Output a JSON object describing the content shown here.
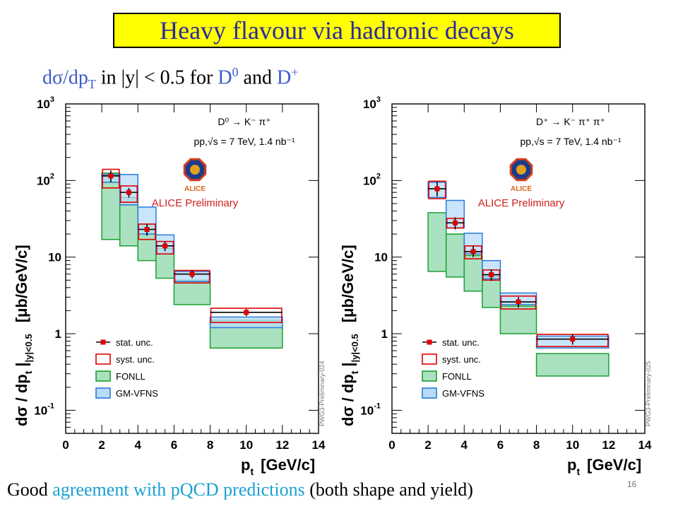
{
  "slide": {
    "title": "Heavy flavour via hadronic decays",
    "subtitle_parts": [
      "dσ/dp",
      "T",
      " in |y| < 0.5 for ",
      "D",
      "0",
      " and ",
      "D",
      "+"
    ],
    "footer_start": "Good ",
    "footer_highlight": "agreement with pQCD predictions",
    "footer_end": " (both shape and yield)",
    "page_number": "16"
  },
  "chart_data": [
    {
      "type": "bar",
      "decay_label": "D⁰ → K⁻ π⁺",
      "energy_label": "pp,√s = 7 TeV, 1.4 nb⁻¹",
      "logo_text": "ALICE",
      "preliminary_label": "ALICE Preliminary",
      "side_label": "PWG3-Preliminary-024",
      "xlabel": "p",
      "xlabel_sub": "t",
      "xlabel_unit": "[GeV/c]",
      "ylabel": "dσ / dp",
      "ylabel_sub": "t",
      "ylabel_cond": "|y|<0.5",
      "ylabel_unit": "[μb/GeV/c]",
      "xlim": [
        0,
        14
      ],
      "ylim": [
        0.05,
        1000
      ],
      "ylog": true,
      "xticks": [
        "0",
        "2",
        "4",
        "6",
        "8",
        "10",
        "12",
        "14"
      ],
      "yticks": [
        {
          "value": 0.1,
          "label": "10",
          "exp": "-1"
        },
        {
          "value": 1,
          "label": "1",
          "exp": ""
        },
        {
          "value": 10,
          "label": "10",
          "exp": ""
        },
        {
          "value": 100,
          "label": "10",
          "exp": "2"
        },
        {
          "value": 1000,
          "label": "10",
          "exp": "3"
        }
      ],
      "bins": [
        {
          "x_low": 2,
          "x_high": 3,
          "x": 2.5,
          "y": 115,
          "stat_low": 95,
          "stat_high": 135,
          "syst_low": 80,
          "syst_high": 140,
          "fonll_low": 17,
          "fonll_high": 125,
          "gmvfns_low": 95,
          "gmvfns_high": 120
        },
        {
          "x_low": 3,
          "x_high": 4,
          "x": 3.5,
          "y": 70,
          "stat_low": 60,
          "stat_high": 80,
          "syst_low": 52,
          "syst_high": 85,
          "fonll_low": 14,
          "fonll_high": 60,
          "gmvfns_low": 48,
          "gmvfns_high": 120
        },
        {
          "x_low": 4,
          "x_high": 5,
          "x": 4.5,
          "y": 23,
          "stat_low": 19,
          "stat_high": 27,
          "syst_low": 17,
          "syst_high": 27,
          "fonll_low": 9,
          "fonll_high": 27,
          "gmvfns_low": 20,
          "gmvfns_high": 45
        },
        {
          "x_low": 5,
          "x_high": 6,
          "x": 5.5,
          "y": 14,
          "stat_low": 12,
          "stat_high": 16,
          "syst_low": 11,
          "syst_high": 16,
          "fonll_low": 5.3,
          "fonll_high": 13,
          "gmvfns_low": 11,
          "gmvfns_high": 19.5
        },
        {
          "x_low": 6,
          "x_high": 8,
          "x": 7,
          "y": 6.0,
          "stat_low": 5.3,
          "stat_high": 6.7,
          "syst_low": 4.6,
          "syst_high": 6.7,
          "fonll_low": 2.4,
          "fonll_high": 5.0,
          "gmvfns_low": 4.8,
          "gmvfns_high": 6.5
        },
        {
          "x_low": 8,
          "x_high": 12,
          "x": 10,
          "y": 1.9,
          "stat_low": 1.7,
          "stat_high": 2.1,
          "syst_low": 1.4,
          "syst_high": 2.15,
          "fonll_low": 0.65,
          "fonll_high": 1.5,
          "gmvfns_low": 1.2,
          "gmvfns_high": 1.65
        }
      ],
      "legend": [
        "stat. unc.",
        "syst. unc.",
        "FONLL",
        "GM-VFNS"
      ],
      "colors": {
        "stat": "#e00000",
        "syst": "#e00000",
        "fonll_fill": "#b4e6c8",
        "fonll_edge": "#1aa033",
        "gmvfns_fill": "#b8dcf8",
        "gmvfns_edge": "#2a7ad8"
      }
    },
    {
      "type": "bar",
      "decay_label": "D⁺ → K⁻ π⁺ π⁺",
      "energy_label": "pp,√s = 7 TeV, 1.4 nb⁻¹",
      "logo_text": "ALICE",
      "preliminary_label": "ALICE Preliminary",
      "side_label": "PWG3-Preliminary-025",
      "xlabel": "p",
      "xlabel_sub": "t",
      "xlabel_unit": "[GeV/c]",
      "ylabel": "dσ / dp",
      "ylabel_sub": "t",
      "ylabel_cond": "|y|<0.5",
      "ylabel_unit": "[μb/GeV/c]",
      "xlim": [
        0,
        14
      ],
      "ylim": [
        0.05,
        1000
      ],
      "ylog": true,
      "xticks": [
        "0",
        "2",
        "4",
        "6",
        "8",
        "10",
        "12",
        "14"
      ],
      "yticks": [
        {
          "value": 0.1,
          "label": "10",
          "exp": "-1"
        },
        {
          "value": 1,
          "label": "1",
          "exp": ""
        },
        {
          "value": 10,
          "label": "10",
          "exp": ""
        },
        {
          "value": 100,
          "label": "10",
          "exp": "2"
        },
        {
          "value": 1000,
          "label": "10",
          "exp": "3"
        }
      ],
      "bins": [
        {
          "x_low": 2,
          "x_high": 3,
          "x": 2.5,
          "y": 78,
          "stat_low": 62,
          "stat_high": 95,
          "syst_low": 58,
          "syst_high": 98,
          "fonll_low": 6.5,
          "fonll_high": 38,
          "gmvfns_low": 60,
          "gmvfns_high": 95
        },
        {
          "x_low": 3,
          "x_high": 4,
          "x": 3.5,
          "y": 28,
          "stat_low": 23,
          "stat_high": 33,
          "syst_low": 24,
          "syst_high": 32,
          "fonll_low": 5.5,
          "fonll_high": 20,
          "gmvfns_low": 24,
          "gmvfns_high": 55
        },
        {
          "x_low": 4,
          "x_high": 5,
          "x": 4.5,
          "y": 11.8,
          "stat_low": 10,
          "stat_high": 14,
          "syst_low": 9.5,
          "syst_high": 14,
          "fonll_low": 3.6,
          "fonll_high": 10.5,
          "gmvfns_low": 11,
          "gmvfns_high": 20.5
        },
        {
          "x_low": 5,
          "x_high": 6,
          "x": 5.5,
          "y": 5.9,
          "stat_low": 4.9,
          "stat_high": 6.9,
          "syst_low": 5.0,
          "syst_high": 6.8,
          "fonll_low": 2.2,
          "fonll_high": 5.6,
          "gmvfns_low": 5.2,
          "gmvfns_high": 9.0
        },
        {
          "x_low": 6,
          "x_high": 8,
          "x": 7,
          "y": 2.6,
          "stat_low": 2.2,
          "stat_high": 3.0,
          "syst_low": 2.1,
          "syst_high": 3.1,
          "fonll_low": 1.0,
          "fonll_high": 2.3,
          "gmvfns_low": 2.4,
          "gmvfns_high": 3.4
        },
        {
          "x_low": 8,
          "x_high": 12,
          "x": 10,
          "y": 0.85,
          "stat_low": 0.72,
          "stat_high": 0.98,
          "syst_low": 0.68,
          "syst_high": 0.98,
          "fonll_low": 0.28,
          "fonll_high": 0.55,
          "gmvfns_low": 0.65,
          "gmvfns_high": 0.93
        }
      ],
      "legend": [
        "stat. unc.",
        "syst. unc.",
        "FONLL",
        "GM-VFNS"
      ],
      "colors": {
        "stat": "#e00000",
        "syst": "#e00000",
        "fonll_fill": "#b4e6c8",
        "fonll_edge": "#1aa033",
        "gmvfns_fill": "#b8dcf8",
        "gmvfns_edge": "#2a7ad8"
      }
    }
  ]
}
